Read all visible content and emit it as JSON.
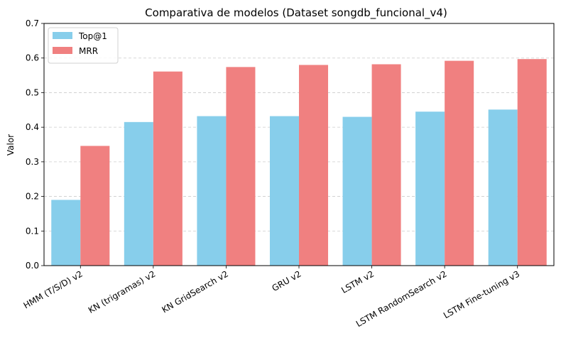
{
  "chart_data": {
    "type": "bar",
    "title": "Comparativa de modelos (Dataset songdb_funcional_v4)",
    "xlabel": "",
    "ylabel": "Valor",
    "ylim": [
      0,
      0.7
    ],
    "yticks": [
      "0.0",
      "0.1",
      "0.2",
      "0.3",
      "0.4",
      "0.5",
      "0.6",
      "0.7"
    ],
    "grid": "y-dashed",
    "legend_position": "top-left",
    "categories": [
      "HMM (T/S/D) v2",
      "KN (trigramas) v2",
      "KN GridSearch v2",
      "GRU v2",
      "LSTM v2",
      "LSTM RandomSearch v2",
      "LSTM Fine-tuning v3"
    ],
    "series": [
      {
        "name": "Top@1",
        "color": "#87ceeb",
        "values": [
          0.19,
          0.415,
          0.432,
          0.432,
          0.43,
          0.445,
          0.451
        ]
      },
      {
        "name": "MRR",
        "color": "#f08080",
        "values": [
          0.346,
          0.561,
          0.574,
          0.58,
          0.582,
          0.592,
          0.597
        ]
      }
    ]
  }
}
